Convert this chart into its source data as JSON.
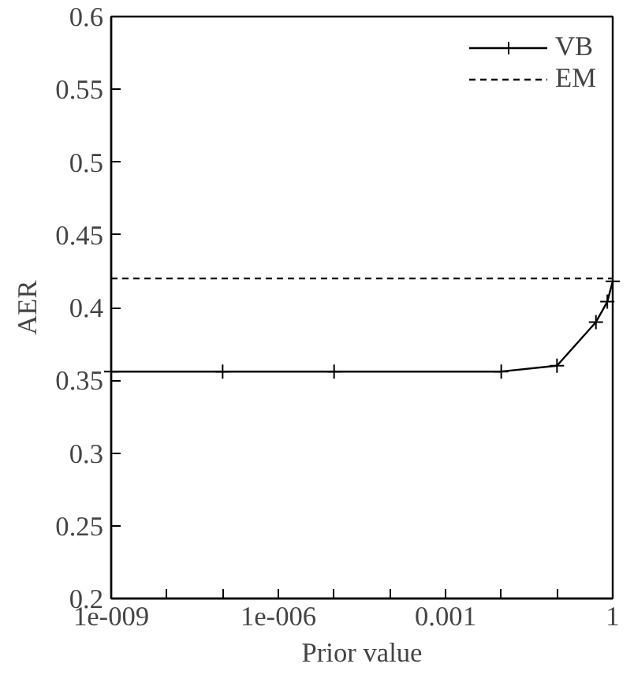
{
  "chart_data": {
    "type": "line",
    "xlabel": "Prior value",
    "ylabel": "AER",
    "log": "x",
    "xlim": [
      1e-09,
      1
    ],
    "xticks": [
      {
        "value": 1e-09,
        "label": "1e-009"
      },
      {
        "value": 1e-08,
        "label": null
      },
      {
        "value": 1e-07,
        "label": null
      },
      {
        "value": 1e-06,
        "label": "1e-006"
      },
      {
        "value": 1e-05,
        "label": null
      },
      {
        "value": 0.0001,
        "label": null
      },
      0.001,
      {
        "value": 0.01,
        "label": null
      },
      {
        "value": 0.1,
        "label": null
      },
      1
    ],
    "ylim": [
      0.2,
      0.6
    ],
    "yticks": [
      0.2,
      0.25,
      0.3,
      0.35,
      0.4,
      0.45,
      0.5,
      0.55,
      0.6
    ],
    "grid": false,
    "legend": "top right",
    "series": [
      {
        "name": "VB",
        "color": "#000000",
        "marker": "cross",
        "line_style": "solid",
        "x": [
          1e-09,
          1e-07,
          1e-05,
          0.01,
          0.1,
          0.5,
          0.8,
          1
        ],
        "values": [
          0.356,
          0.356,
          0.356,
          0.356,
          0.36,
          0.39,
          0.404,
          0.418
        ]
      },
      {
        "name": "EM",
        "color": "#000000",
        "marker": "none",
        "line_style": "dashed",
        "x": [
          1e-09,
          1
        ],
        "values": [
          0.42,
          0.42
        ]
      }
    ]
  }
}
